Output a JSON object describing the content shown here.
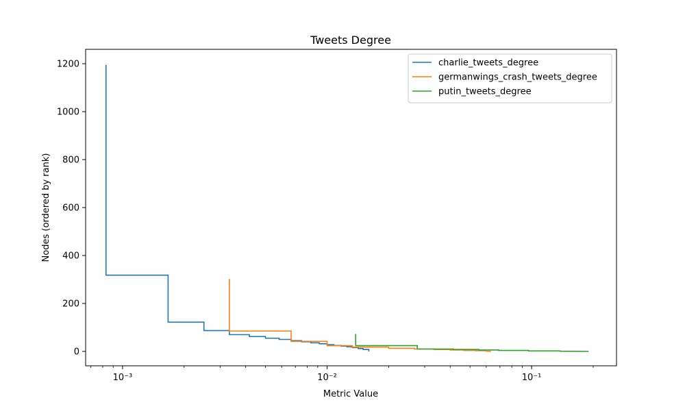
{
  "chart_data": {
    "type": "line",
    "title": "Tweets Degree",
    "xlabel": "Metric Value",
    "ylabel": "Nodes (ordered by rank)",
    "xscale": "log",
    "xlim": [
      0.00066,
      0.26
    ],
    "ylim": [
      -60,
      1260
    ],
    "xticks": [
      {
        "value": 0.001,
        "label": "10⁻³"
      },
      {
        "value": 0.01,
        "label": "10⁻²"
      },
      {
        "value": 0.1,
        "label": "10⁻¹"
      }
    ],
    "yticks": [
      0,
      200,
      400,
      600,
      800,
      1000,
      1200
    ],
    "grid": false,
    "legend_position": "top-right",
    "series": [
      {
        "name": "charlie_tweets_degree",
        "color": "#1f77b4",
        "x": [
          0.00083,
          0.00083,
          0.00167,
          0.00167,
          0.0025,
          0.0025,
          0.00333,
          0.00333,
          0.00417,
          0.00417,
          0.005,
          0.005,
          0.00583,
          0.00583,
          0.00667,
          0.00667,
          0.0075,
          0.0075,
          0.00833,
          0.00833,
          0.00917,
          0.00917,
          0.01,
          0.01,
          0.0108,
          0.0108,
          0.0117,
          0.0117,
          0.0125,
          0.0125,
          0.0133,
          0.0133,
          0.0142,
          0.0142,
          0.015,
          0.015,
          0.016,
          0.016
        ],
        "y": [
          1195,
          318,
          318,
          122,
          122,
          87,
          87,
          70,
          70,
          62,
          62,
          55,
          55,
          50,
          50,
          45,
          45,
          40,
          40,
          36,
          36,
          32,
          32,
          28,
          28,
          25,
          25,
          22,
          22,
          19,
          19,
          16,
          16,
          12,
          12,
          8,
          8,
          0
        ]
      },
      {
        "name": "germanwings_crash_tweets_degree",
        "color": "#ff7f0e",
        "x": [
          0.00333,
          0.00333,
          0.00667,
          0.00667,
          0.01,
          0.01,
          0.0133,
          0.0133,
          0.02,
          0.02,
          0.0267,
          0.0267,
          0.0333,
          0.0333,
          0.04,
          0.04,
          0.0467,
          0.0467,
          0.0533,
          0.0533,
          0.06,
          0.06,
          0.0633
        ],
        "y": [
          302,
          85,
          85,
          42,
          42,
          24,
          24,
          18,
          18,
          13,
          13,
          10,
          10,
          8,
          8,
          6,
          6,
          4,
          4,
          3,
          3,
          1,
          0
        ]
      },
      {
        "name": "putin_tweets_degree",
        "color": "#2ca02c",
        "x": [
          0.0138,
          0.0138,
          0.0276,
          0.0276,
          0.0414,
          0.0414,
          0.0552,
          0.0552,
          0.069,
          0.069,
          0.0966,
          0.0966,
          0.138,
          0.138,
          0.19
        ],
        "y": [
          73,
          24,
          24,
          10,
          10,
          8,
          8,
          6,
          6,
          4,
          4,
          2,
          2,
          1,
          0
        ]
      }
    ]
  }
}
